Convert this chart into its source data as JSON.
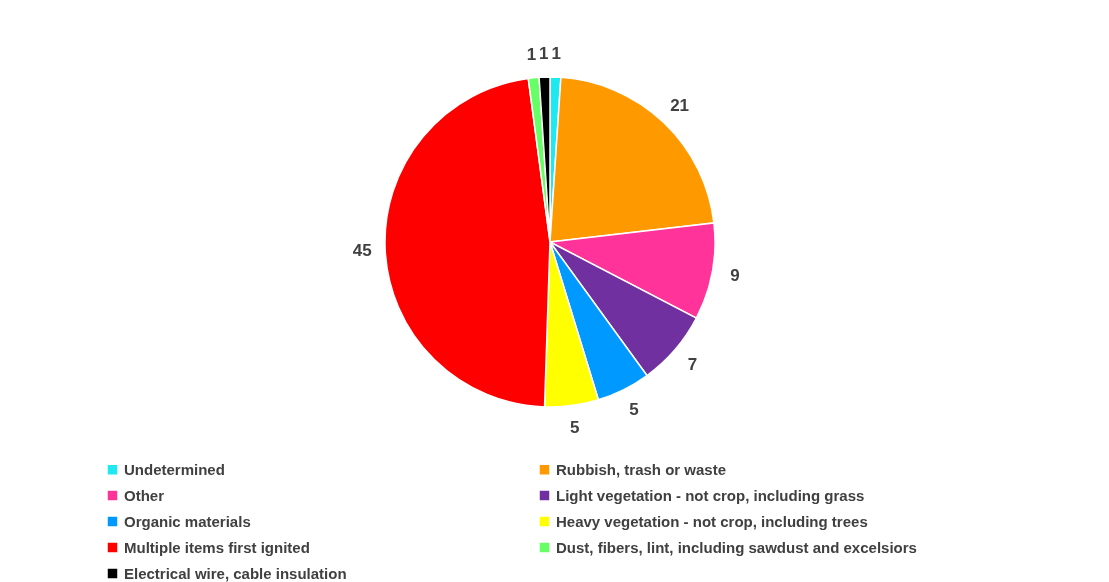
{
  "chart_data": {
    "type": "pie",
    "categories": [
      "Undetermined",
      "Rubbish, trash or waste",
      "Other",
      "Light vegetation - not crop, including grass",
      "Organic materials",
      "Heavy vegetation - not crop, including trees",
      "Multiple items first ignited",
      "Dust, fibers, lint, including sawdust and excelsiors",
      "Electrical wire, cable insulation"
    ],
    "values": [
      1,
      21,
      9,
      7,
      5,
      5,
      45,
      1,
      1
    ],
    "colors": [
      "#1ee8f0",
      "#ff9900",
      "#ff3399",
      "#7030a0",
      "#0099ff",
      "#ffff00",
      "#ff0000",
      "#66ff66",
      "#000000"
    ],
    "data_labels": true,
    "legend": "bottom"
  }
}
